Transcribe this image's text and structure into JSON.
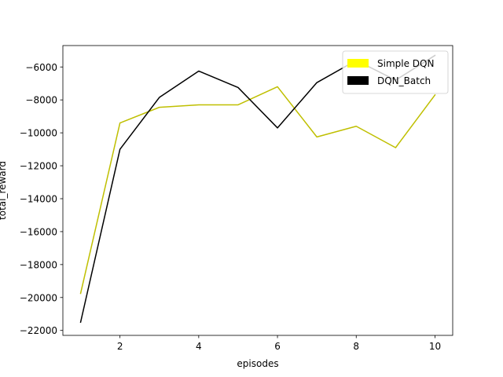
{
  "chart_data": {
    "type": "line",
    "title": "",
    "xlabel": "episodes",
    "ylabel": "total_reward",
    "xlim": [
      0.55,
      10.45
    ],
    "ylim": [
      -22300,
      -4700
    ],
    "xticks": [
      2,
      4,
      6,
      8,
      10
    ],
    "yticks": [
      -22000,
      -20000,
      -18000,
      -16000,
      -14000,
      -12000,
      -10000,
      -8000,
      -6000
    ],
    "grid": false,
    "legend_position": "top-right",
    "x": [
      1,
      2,
      3,
      4,
      5,
      6,
      7,
      8,
      9,
      10
    ],
    "series": [
      {
        "name": "Simple DQN",
        "color": "#bfbf00",
        "legend_color": "#ffff00",
        "values": [
          -19750,
          -9400,
          -8450,
          -8300,
          -8300,
          -7200,
          -10250,
          -9600,
          -10900,
          -7700
        ]
      },
      {
        "name": "DQN_Batch",
        "color": "#000000",
        "legend_color": "#000000",
        "values": [
          -21500,
          -11000,
          -7850,
          -6250,
          -7250,
          -9700,
          -6950,
          -5600,
          -6800,
          -5300
        ]
      }
    ]
  }
}
